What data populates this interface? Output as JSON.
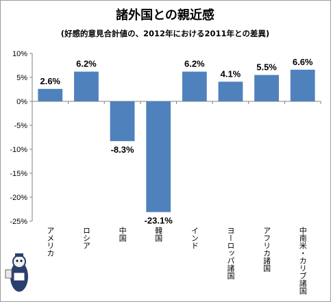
{
  "chart_data": {
    "type": "bar",
    "title": "諸外国との親近感",
    "subtitle": "(好感的意見合計値の、2012年における2011年との差異)",
    "categories": [
      "アメリカ",
      "ロシア",
      "中国",
      "韓国",
      "インド",
      "ヨーロッパ諸国",
      "アフリカ諸国",
      "中南米・カリブ諸国"
    ],
    "values": [
      2.6,
      6.2,
      -8.3,
      -23.1,
      6.2,
      4.1,
      5.5,
      6.6
    ],
    "data_labels": [
      "2.6%",
      "6.2%",
      "-8.3%",
      "-23.1%",
      "6.2%",
      "4.1%",
      "5.5%",
      "6.6%"
    ],
    "yticks": [
      10,
      5,
      0,
      -5,
      -10,
      -15,
      -20,
      -25
    ],
    "ytick_labels": [
      "10%",
      "5%",
      "0%",
      "-5%",
      "-10%",
      "-15%",
      "-20%",
      "-25%"
    ],
    "ylim": [
      -25,
      10
    ],
    "xlabel": "",
    "ylabel": "",
    "grid": false,
    "legend": "none",
    "bar_color": "#4f81bd"
  }
}
